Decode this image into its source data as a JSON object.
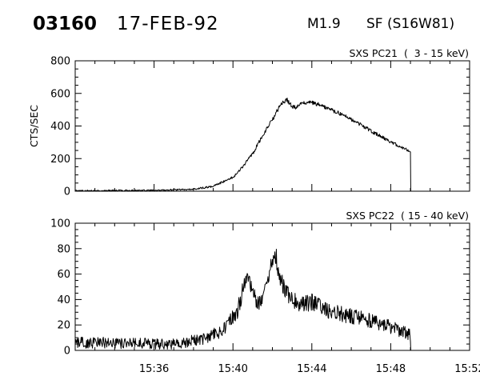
{
  "header": {
    "event_id": "03160",
    "date": "17-FEB-92",
    "flare_class": "M1.9",
    "location": "SF (S16W81)"
  },
  "colors": {
    "background": "#ffffff",
    "foreground": "#000000"
  },
  "chart_data": [
    {
      "type": "line",
      "title": "SXS PC21  (  3 - 15 keV)",
      "ylabel": "CTS/SEC",
      "xlabel": "",
      "x_unit": "UT",
      "xlim": [
        "15:32:00",
        "15:52:00"
      ],
      "ylim": [
        0,
        800
      ],
      "yticks": [
        0,
        200,
        400,
        600,
        800
      ],
      "grid": false,
      "series": [
        {
          "x": [
            "15:32:00",
            "15:36:00",
            "15:38:00",
            "15:39:00",
            "15:40:00",
            "15:40:30",
            "15:41:00",
            "15:41:30",
            "15:42:00",
            "15:42:15",
            "15:42:30",
            "15:42:45",
            "15:43:00",
            "15:43:15",
            "15:43:30",
            "15:44:00",
            "15:44:30",
            "15:45:00",
            "15:45:30",
            "15:46:00",
            "15:47:00",
            "15:48:00",
            "15:48:45",
            "15:49:00",
            "15:49:01"
          ],
          "values": [
            3,
            5,
            12,
            30,
            85,
            150,
            230,
            340,
            440,
            495,
            545,
            560,
            520,
            515,
            540,
            545,
            525,
            500,
            470,
            440,
            370,
            300,
            260,
            245,
            0
          ]
        }
      ]
    },
    {
      "type": "line",
      "title": "SXS PC22  ( 15 - 40 keV)",
      "ylabel": "",
      "xlabel": "",
      "x_unit": "UT",
      "xlim": [
        "15:32:00",
        "15:52:00"
      ],
      "ylim": [
        0,
        100
      ],
      "yticks": [
        0,
        20,
        40,
        60,
        80,
        100
      ],
      "xticks": [
        "15:36",
        "15:40",
        "15:44",
        "15:48",
        "15:52"
      ],
      "grid": false,
      "series": [
        {
          "x": [
            "15:32:00",
            "15:34:00",
            "15:37:00",
            "15:38:30",
            "15:39:15",
            "15:39:45",
            "15:40:15",
            "15:40:30",
            "15:40:45",
            "15:41:00",
            "15:41:15",
            "15:41:30",
            "15:41:45",
            "15:42:00",
            "15:42:10",
            "15:42:20",
            "15:42:40",
            "15:43:00",
            "15:43:30",
            "15:44:00",
            "15:45:00",
            "15:46:00",
            "15:47:00",
            "15:48:00",
            "15:49:00",
            "15:49:01"
          ],
          "values": [
            6,
            6,
            5,
            9,
            14,
            20,
            32,
            48,
            55,
            50,
            35,
            43,
            56,
            68,
            75,
            62,
            45,
            41,
            36,
            38,
            30,
            27,
            23,
            18,
            12,
            0
          ]
        }
      ]
    }
  ]
}
